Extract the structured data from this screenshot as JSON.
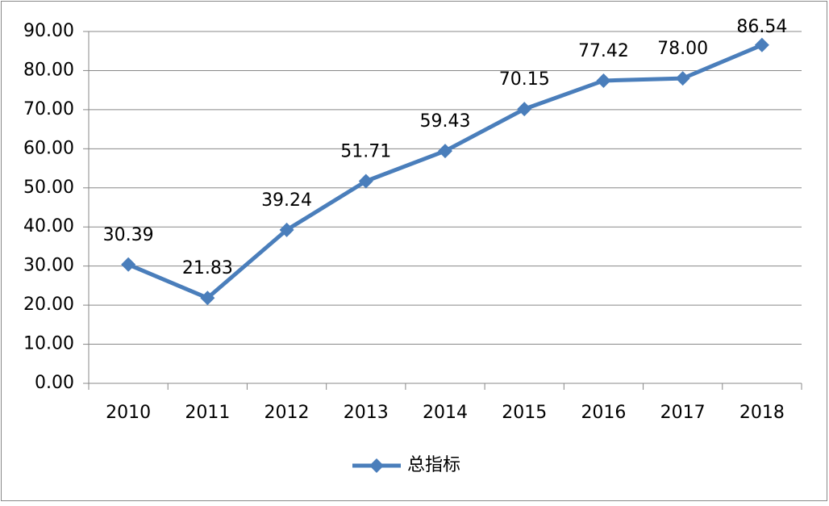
{
  "chart_data": {
    "type": "line",
    "categories": [
      "2010",
      "2011",
      "2012",
      "2013",
      "2014",
      "2015",
      "2016",
      "2017",
      "2018"
    ],
    "series": [
      {
        "name": "总指标",
        "color": "#4a7ebb",
        "values": [
          30.39,
          21.83,
          39.24,
          51.71,
          59.43,
          70.15,
          77.42,
          78,
          86.54
        ],
        "value_labels": [
          "30.39",
          "21.83",
          "39.24",
          "51.71",
          "59.43",
          "70.15",
          "77.42",
          "78.00",
          "86.54"
        ]
      }
    ],
    "ylim": [
      0,
      90
    ],
    "yticks": [
      {
        "value": 0,
        "label": "0.00"
      },
      {
        "value": 10,
        "label": "10.00"
      },
      {
        "value": 20,
        "label": "20.00"
      },
      {
        "value": 30,
        "label": "30.00"
      },
      {
        "value": 40,
        "label": "40.00"
      },
      {
        "value": 50,
        "label": "50.00"
      },
      {
        "value": 60,
        "label": "60.00"
      },
      {
        "value": 70,
        "label": "70.00"
      },
      {
        "value": 80,
        "label": "80.00"
      },
      {
        "value": 90,
        "label": "90.00"
      }
    ],
    "grid": true,
    "legend": "bottom"
  }
}
